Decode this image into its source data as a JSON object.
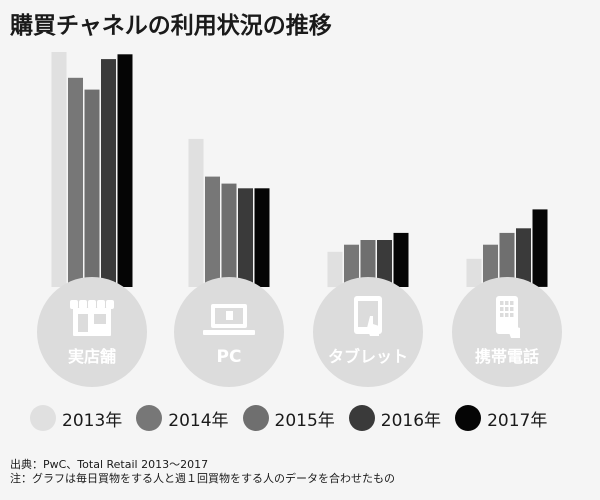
{
  "title": "購買チャネルの利用状況の推移",
  "chart_data": {
    "type": "bar",
    "categories": [
      "実店舗",
      "PC",
      "タブレット",
      "携帯電話"
    ],
    "category_icons": [
      "store-icon",
      "laptop-icon",
      "tablet-icon",
      "smartphone-icon"
    ],
    "series": [
      {
        "name": "2013年",
        "values": [
          100,
          63,
          15,
          12
        ],
        "color": "#e0e0e0"
      },
      {
        "name": "2014年",
        "values": [
          89,
          47,
          18,
          18
        ],
        "color": "#777777"
      },
      {
        "name": "2015年",
        "values": [
          84,
          44,
          20,
          23
        ],
        "color": "#6f6f6f"
      },
      {
        "name": "2016年",
        "values": [
          97,
          42,
          20,
          25
        ],
        "color": "#3a3a3a"
      },
      {
        "name": "2017年",
        "values": [
          99,
          42,
          23,
          33
        ],
        "color": "#050505"
      }
    ],
    "ylim": [
      0,
      100
    ],
    "legend_position": "bottom",
    "grid": false
  },
  "notes": [
    "出典：PwC、Total Retail 2013〜2017",
    "注：グラフは毎日買物をする人と週１回買物をする人のデータを合わせたもの"
  ]
}
